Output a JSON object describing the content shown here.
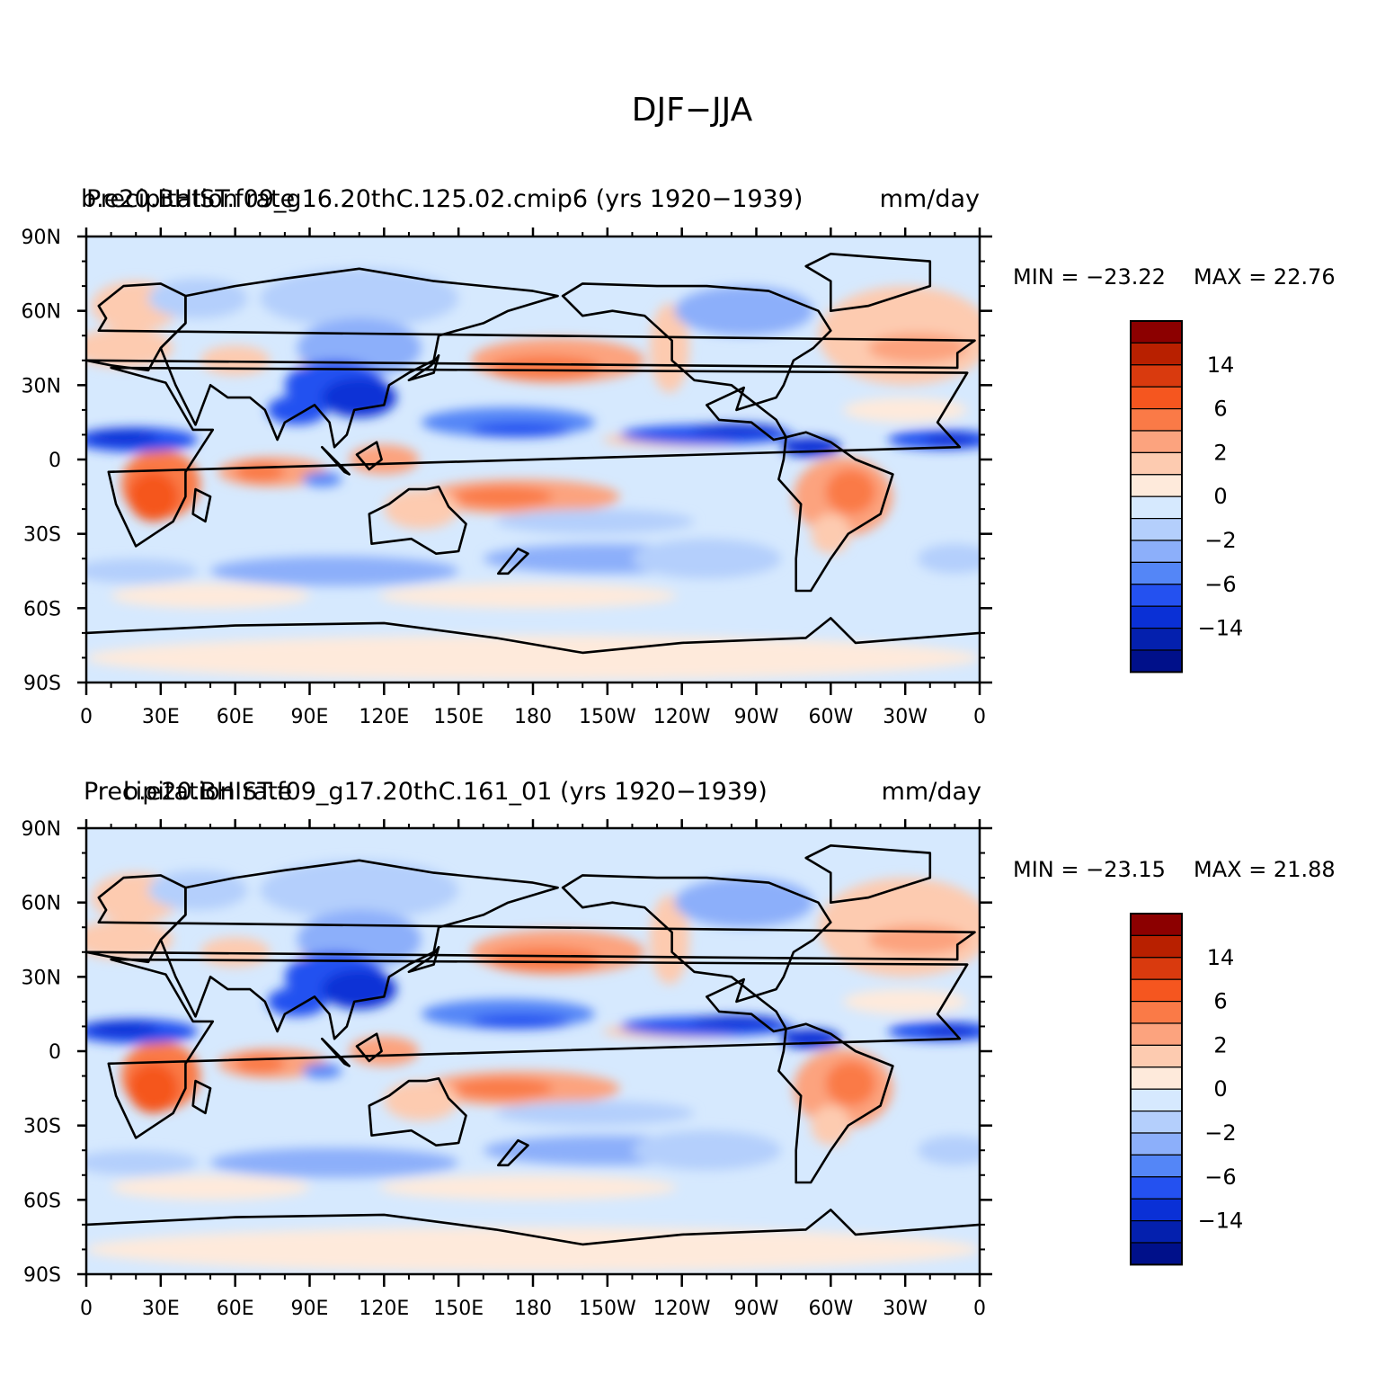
{
  "figure": {
    "title": "DJF−JJA"
  },
  "panels": [
    {
      "case_label": "b.e20.BHIST.f09_g16.20thC.125.02.cmip6 (yrs 1920−1939)",
      "variable_label": "Precipitation rate",
      "units_label": "mm/day",
      "min_label": "MIN = −23.22",
      "max_label": "MAX =  22.76"
    },
    {
      "case_label": "b.e20.BHIST.f09_g17.20thC.161_01 (yrs 1920−1939)",
      "variable_label": "Precipitation rate",
      "units_label": "mm/day",
      "min_label": "MIN = −23.15",
      "max_label": "MAX =  21.88"
    }
  ],
  "axes": {
    "lat_ticks": [
      "90N",
      "60N",
      "30N",
      "0",
      "30S",
      "60S",
      "90S"
    ],
    "lon_ticks": [
      "0",
      "30E",
      "60E",
      "90E",
      "120E",
      "150E",
      "180",
      "150W",
      "120W",
      "90W",
      "60W",
      "30W",
      "0"
    ]
  },
  "colorbar": {
    "colors": [
      "#8c0000",
      "#b82000",
      "#d93a0e",
      "#f5561f",
      "#fa7a47",
      "#fca37e",
      "#fdcbb0",
      "#feeadb",
      "#d6e9fe",
      "#b4cffc",
      "#8caffa",
      "#5486f7",
      "#2451f0",
      "#0a30d6",
      "#0420ae",
      "#00108a"
    ],
    "labels": [
      "14",
      "6",
      "2",
      "0",
      "−2",
      "−6",
      "−14"
    ]
  },
  "palette": {
    "ocean_background": "#d6e9fe",
    "coastline": "#000000"
  }
}
